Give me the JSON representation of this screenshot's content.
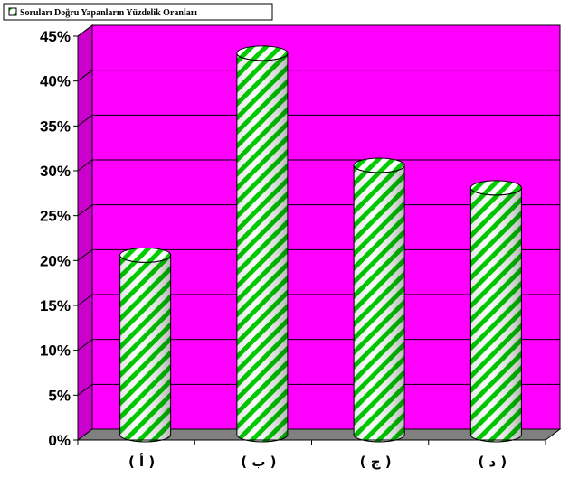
{
  "chart_data": {
    "type": "bar",
    "bar_shape": "cylinder-3d",
    "categories": [
      "( أ )",
      "( ب )",
      "( ج )",
      "( د )"
    ],
    "series": [
      {
        "name": "Soruları Doğru Yapanların Yüzdelik Oranları",
        "values": [
          20,
          42.5,
          30,
          27.5
        ]
      }
    ],
    "yticks": [
      "0%",
      "5%",
      "10%",
      "15%",
      "20%",
      "25%",
      "30%",
      "35%",
      "40%",
      "45%"
    ],
    "ylim": [
      0,
      45
    ],
    "ytick_step": 5,
    "y_format": "percent",
    "grid": true,
    "legend": "top-left",
    "colors": {
      "plot_back": "#ff00ff",
      "side_wall": "#cc00cc",
      "floor": "#808080",
      "bar_light": "#ffffff",
      "bar_stripe": "#00cc00",
      "legend_swatch": "#00cc00"
    }
  }
}
